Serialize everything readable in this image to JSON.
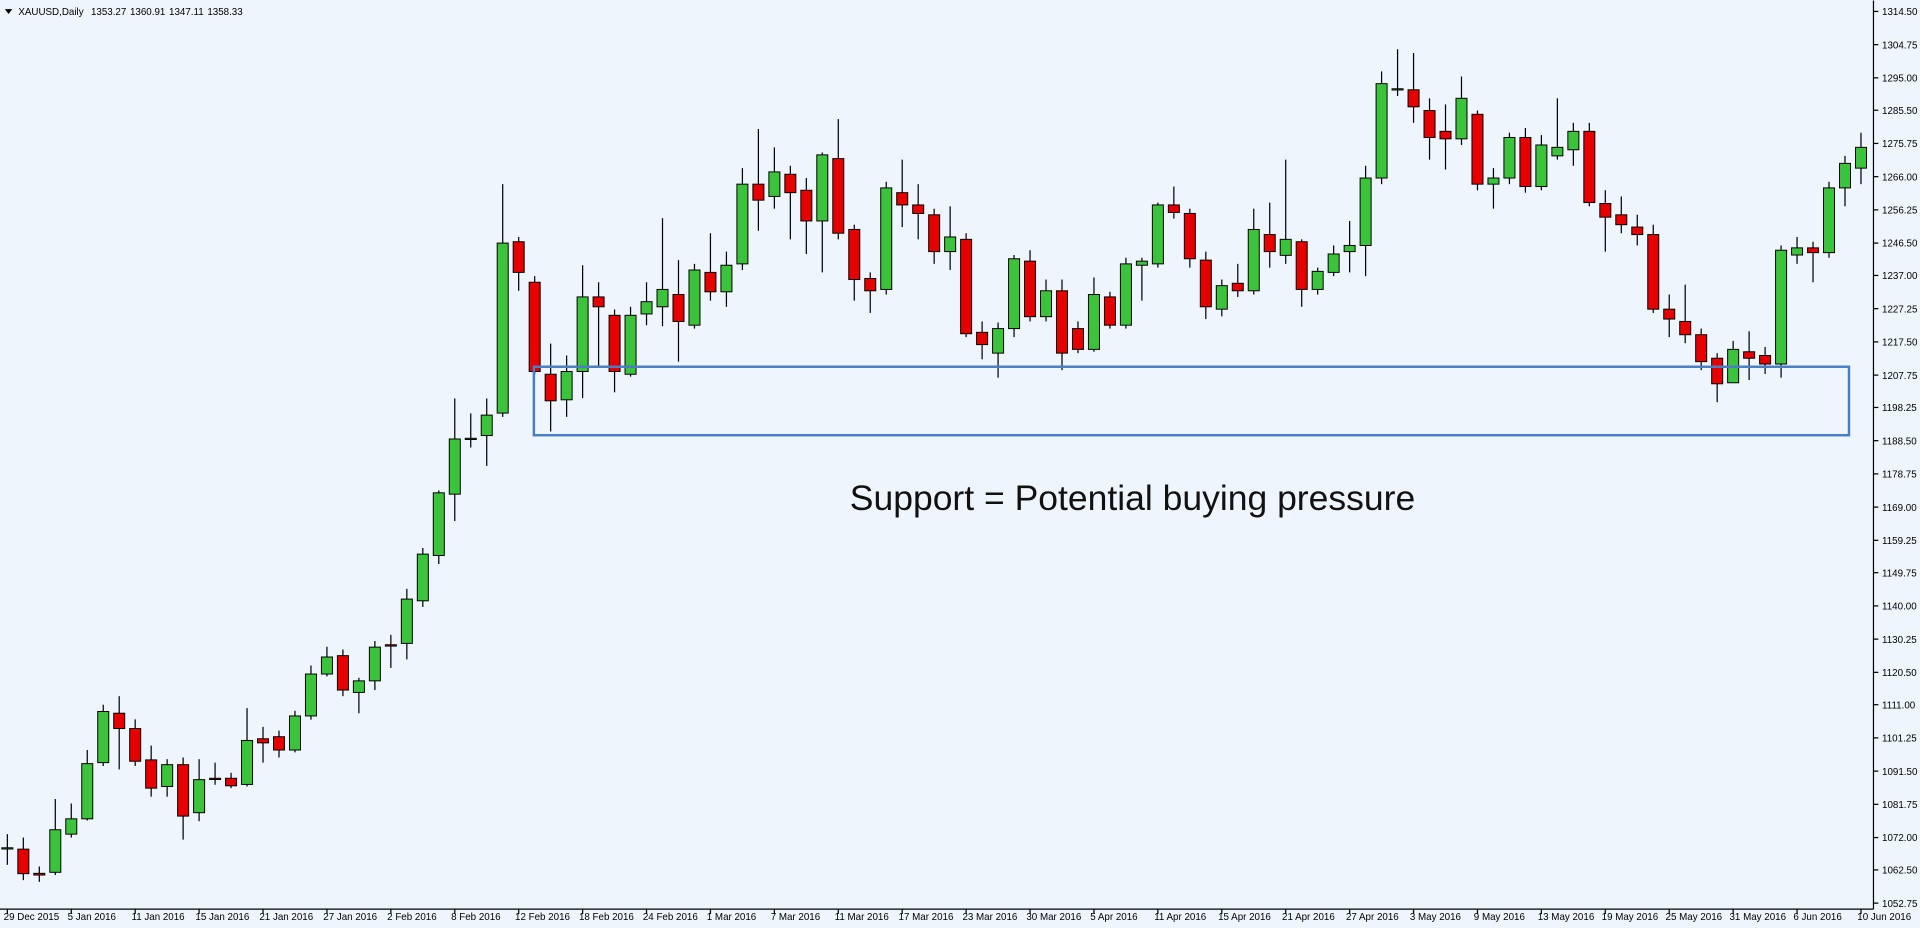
{
  "chart_data": {
    "type": "candlestick",
    "title": "XAUUSD,Daily",
    "quote": [
      1353.27,
      1360.91,
      1347.11,
      1358.33
    ],
    "annotation": "Support = Potential buying pressure",
    "support_zone": [
      1190.1,
      1210.2
    ],
    "up_color": "#3cc33c",
    "down_color": "#e60000",
    "zone_color": "#4a7ec4",
    "ylim": [
      1051,
      1317.7
    ],
    "yticks": [
      {
        "value": 1314.5,
        "label": "1314.50"
      },
      {
        "value": 1304.75,
        "label": "1304.75"
      },
      {
        "value": 1295,
        "label": "1295.00"
      },
      {
        "value": 1285.5,
        "label": "1285.50"
      },
      {
        "value": 1275.75,
        "label": "1275.75"
      },
      {
        "value": 1266,
        "label": "1266.00"
      },
      {
        "value": 1256.25,
        "label": "1256.25"
      },
      {
        "value": 1246.5,
        "label": "1246.50"
      },
      {
        "value": 1237,
        "label": "1237.00"
      },
      {
        "value": 1227.25,
        "label": "1227.25"
      },
      {
        "value": 1217.5,
        "label": "1217.50"
      },
      {
        "value": 1207.75,
        "label": "1207.75"
      },
      {
        "value": 1198.25,
        "label": "1198.25"
      },
      {
        "value": 1188.5,
        "label": "1188.50"
      },
      {
        "value": 1178.75,
        "label": "1178.75"
      },
      {
        "value": 1169,
        "label": "1169.00"
      },
      {
        "value": 1159.25,
        "label": "1159.25"
      },
      {
        "value": 1149.75,
        "label": "1149.75"
      },
      {
        "value": 1140,
        "label": "1140.00"
      },
      {
        "value": 1130.25,
        "label": "1130.25"
      },
      {
        "value": 1120.5,
        "label": "1120.50"
      },
      {
        "value": 1111,
        "label": "1111.00"
      },
      {
        "value": 1101.25,
        "label": "1101.25"
      },
      {
        "value": 1091.5,
        "label": "1091.50"
      },
      {
        "value": 1081.75,
        "label": "1081.75"
      },
      {
        "value": 1072,
        "label": "1072.00"
      },
      {
        "value": 1062.5,
        "label": "1062.50"
      },
      {
        "value": 1052.75,
        "label": "1052.75"
      }
    ],
    "categories": [
      "29 Dec 2015",
      null,
      null,
      null,
      "5 Jan 2016",
      null,
      null,
      null,
      "11 Jan 2016",
      null,
      null,
      null,
      "15 Jan 2016",
      null,
      null,
      null,
      "21 Jan 2016",
      null,
      null,
      null,
      "27 Jan 2016",
      null,
      null,
      null,
      "2 Feb 2016",
      null,
      null,
      null,
      "8 Feb 2016",
      null,
      null,
      null,
      "12 Feb 2016",
      null,
      null,
      null,
      "18 Feb 2016",
      null,
      null,
      null,
      "24 Feb 2016",
      null,
      null,
      null,
      "1 Mar 2016",
      null,
      null,
      null,
      "7 Mar 2016",
      null,
      null,
      null,
      "11 Mar 2016",
      null,
      null,
      null,
      "17 Mar 2016",
      null,
      null,
      null,
      "23 Mar 2016",
      null,
      null,
      null,
      "30 Mar 2016",
      null,
      null,
      null,
      "5 Apr 2016",
      null,
      null,
      null,
      "11 Apr 2016",
      null,
      null,
      null,
      "15 Apr 2016",
      null,
      null,
      null,
      "21 Apr 2016",
      null,
      null,
      null,
      "27 Apr 2016",
      null,
      null,
      null,
      "3 May 2016",
      null,
      null,
      null,
      "9 May 2016",
      null,
      null,
      null,
      "13 May 2016",
      null,
      null,
      null,
      "19 May 2016",
      null,
      null,
      null,
      "25 May 2016",
      null,
      null,
      null,
      "31 May 2016",
      null,
      null,
      null,
      "6 Jun 2016",
      null,
      null,
      null,
      "10 Jun 2016"
    ],
    "open": [
      1069,
      1068.6,
      1061.5,
      1061.8,
      1073,
      1077.5,
      1094,
      1108.5,
      1104,
      1094.8,
      1087,
      1093.4,
      1079.3,
      1089.4,
      1089.4,
      1087.6,
      1101,
      1101.6,
      1097.7,
      1107.7,
      1120,
      1125.4,
      1114.6,
      1118,
      1128.6,
      1129,
      1141.5,
      1154.8,
      1172.8,
      1189,
      1190,
      1196.6,
      1246.9,
      1235,
      1208,
      1200.5,
      1208.8,
      1230.7,
      1225.3,
      1208,
      1225.7,
      1227.8,
      1231.4,
      1222.4,
      1237.9,
      1232.2,
      1240.4,
      1263.8,
      1260.2,
      1266.7,
      1262,
      1253,
      1271.3,
      1250.5,
      1236.1,
      1232.9,
      1261.3,
      1257.7,
      1254.8,
      1244,
      1247.6,
      1220.3,
      1214.2,
      1221.4,
      1241.2,
      1224.9,
      1232.5,
      1221.4,
      1215.3,
      1230.7,
      1222.4,
      1240,
      1240.4,
      1257.7,
      1255.2,
      1241.5,
      1227.1,
      1234.7,
      1232.5,
      1249,
      1242.9,
      1246.9,
      1232.9,
      1237.9,
      1244,
      1245.8,
      1265.6,
      1291.5,
      1291.5,
      1285.4,
      1279.3,
      1277.1,
      1284.3,
      1263.8,
      1265.6,
      1277.5,
      1263.1,
      1272.1,
      1273.9,
      1279.3,
      1258.1,
      1254.8,
      1251.2,
      1249,
      1227.1,
      1223.5,
      1219.6,
      1212.7,
      1205.5,
      1214.6,
      1213.5,
      1211,
      1243,
      1245.1,
      1243.7,
      1262.7,
      1268.5
    ],
    "high": [
      1073,
      1072,
      1063.5,
      1083.3,
      1082,
      1097.7,
      1111,
      1113.5,
      1106.7,
      1099,
      1095,
      1095.5,
      1095,
      1094,
      1091,
      1110,
      1104.5,
      1103.4,
      1109.2,
      1122.5,
      1128,
      1127.2,
      1118.9,
      1129.7,
      1131.5,
      1145,
      1157,
      1173.9,
      1200.9,
      1196.5,
      1200.9,
      1263.8,
      1248.3,
      1236.8,
      1217,
      1213.5,
      1240,
      1235,
      1227,
      1227.8,
      1235,
      1253.8,
      1241.5,
      1240.4,
      1249.4,
      1244,
      1268.5,
      1280,
      1274.6,
      1269.2,
      1265.6,
      1273.1,
      1282.9,
      1251.9,
      1237.9,
      1264.5,
      1271,
      1263.8,
      1256.6,
      1257.3,
      1249.4,
      1223.5,
      1223.2,
      1243,
      1244.4,
      1235.8,
      1235.8,
      1223.5,
      1236.4,
      1232.2,
      1242.2,
      1242.2,
      1258.4,
      1263.1,
      1256.6,
      1244,
      1235.8,
      1240.4,
      1256.6,
      1258.4,
      1271,
      1247.6,
      1239.3,
      1245.8,
      1253,
      1269.2,
      1296.9,
      1303.4,
      1302.3,
      1289,
      1287.2,
      1295.4,
      1285.4,
      1268.5,
      1278.9,
      1280.3,
      1278.2,
      1289,
      1281.8,
      1281.8,
      1262,
      1260.2,
      1254.8,
      1251.9,
      1231.4,
      1234.3,
      1221.4,
      1214.2,
      1217.8,
      1220.6,
      1216,
      1245.8,
      1248.3,
      1246.9,
      1264.5,
      1272.1,
      1278.9
    ],
    "low": [
      1064,
      1059.5,
      1059,
      1061,
      1072,
      1077,
      1093,
      1092,
      1093,
      1084,
      1084,
      1071.4,
      1076.8,
      1087.5,
      1086.5,
      1087,
      1094,
      1095.5,
      1097,
      1106.6,
      1119.3,
      1113.5,
      1108.5,
      1115.3,
      1121.8,
      1124.3,
      1139.7,
      1152.3,
      1164.9,
      1186.5,
      1181.1,
      1195.5,
      1232.5,
      1208,
      1191.2,
      1195.5,
      1201,
      1210,
      1202.7,
      1207.3,
      1222.4,
      1222.1,
      1211.7,
      1221.4,
      1229.6,
      1227.8,
      1238.6,
      1250.1,
      1256.6,
      1247.6,
      1243.3,
      1237.9,
      1247.6,
      1229.6,
      1226,
      1231.4,
      1251.2,
      1247.6,
      1240.4,
      1238.6,
      1218.9,
      1212.4,
      1207,
      1218.9,
      1223.5,
      1223.5,
      1209.2,
      1214.2,
      1214.6,
      1221.4,
      1221.4,
      1229.6,
      1239.3,
      1253.7,
      1239.3,
      1224.2,
      1225,
      1230.7,
      1231.4,
      1239.3,
      1240.4,
      1227.8,
      1231.4,
      1236.8,
      1237.9,
      1236.8,
      1263.8,
      1289.7,
      1281.8,
      1271,
      1268.1,
      1275.3,
      1262,
      1256.6,
      1263.8,
      1261.3,
      1262,
      1271,
      1269.2,
      1257.3,
      1244,
      1249.4,
      1245.8,
      1226,
      1218.9,
      1217.1,
      1209.2,
      1199.8,
      1205.5,
      1206.3,
      1208.1,
      1207,
      1240.4,
      1235,
      1242.2,
      1257.3,
      1263.8
    ],
    "close": [
      1069,
      1061.4,
      1061,
      1074.3,
      1077.5,
      1093.7,
      1109,
      1104,
      1094.4,
      1086.5,
      1093.4,
      1078.3,
      1089,
      1089.2,
      1087.2,
      1100.5,
      1099.8,
      1097.7,
      1107.7,
      1120,
      1125,
      1115.3,
      1118,
      1127.9,
      1128.2,
      1142,
      1155.2,
      1173.2,
      1189,
      1189.2,
      1196,
      1246.5,
      1237.9,
      1208.8,
      1200.2,
      1208.8,
      1230.7,
      1227.8,
      1208.8,
      1225.3,
      1229.3,
      1232.9,
      1223.5,
      1238.6,
      1232.2,
      1240,
      1263.8,
      1259.1,
      1267.4,
      1261.3,
      1253,
      1272.4,
      1249.4,
      1235.8,
      1232.5,
      1262.7,
      1257.7,
      1255.2,
      1244,
      1248.3,
      1219.9,
      1216.7,
      1221.4,
      1241.9,
      1224.9,
      1232.5,
      1214.2,
      1215.3,
      1231.4,
      1222.4,
      1240.4,
      1241.2,
      1257.7,
      1255.5,
      1241.9,
      1227.8,
      1234,
      1232.5,
      1250.5,
      1244,
      1247.6,
      1232.9,
      1238.2,
      1243.3,
      1245.8,
      1265.6,
      1293.3,
      1291.8,
      1286.5,
      1277.5,
      1277.1,
      1289,
      1263.8,
      1265.6,
      1277.5,
      1263.1,
      1275.3,
      1274.6,
      1279.3,
      1258.4,
      1254.1,
      1251.9,
      1249,
      1227.1,
      1224.2,
      1219.6,
      1211.7,
      1205.2,
      1215.3,
      1212.7,
      1211,
      1244.4,
      1245.1,
      1243.7,
      1262.7,
      1269.9,
      1274.6
    ]
  }
}
